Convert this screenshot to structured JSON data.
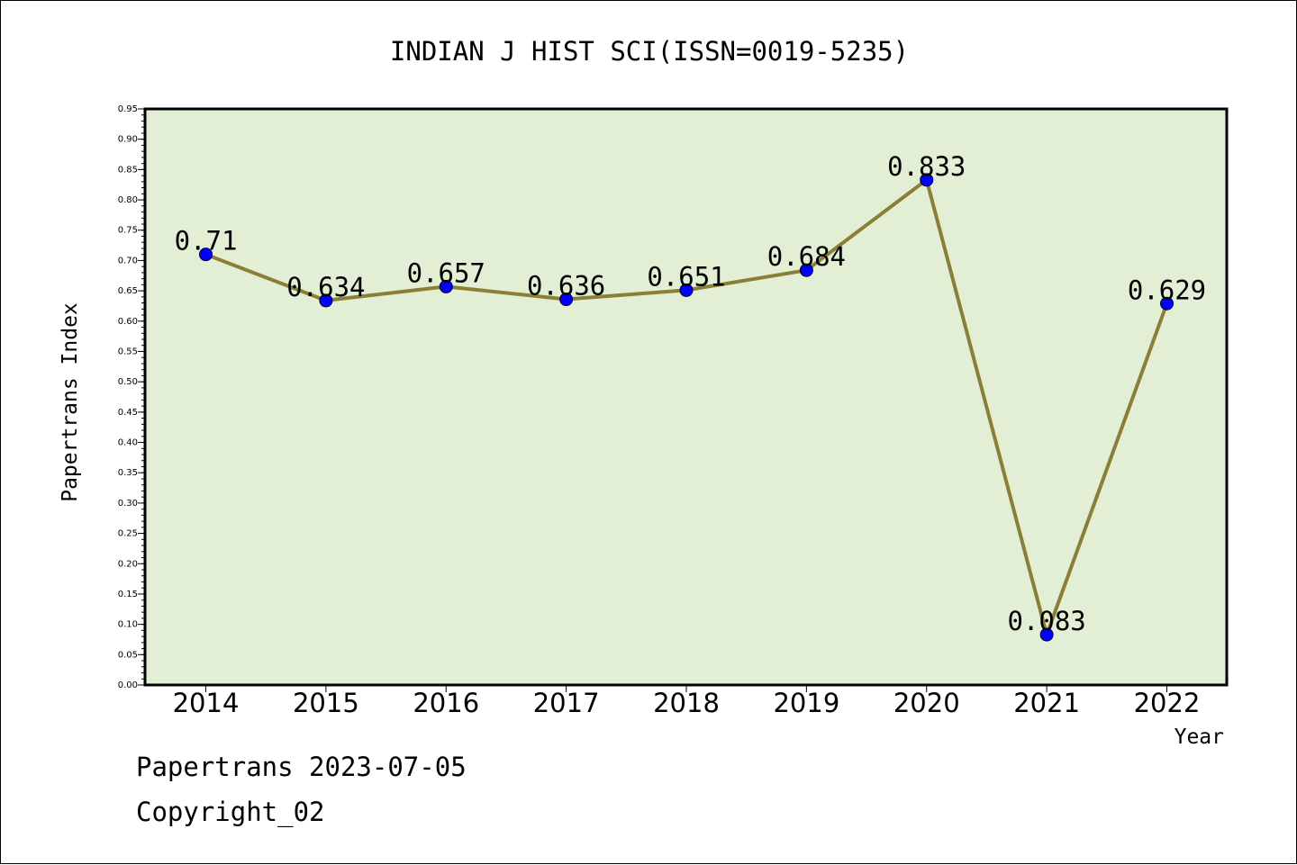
{
  "chart_data": {
    "type": "line",
    "title": "INDIAN J HIST SCI(ISSN=0019-5235)",
    "xlabel": "Year",
    "ylabel": "Papertrans Index",
    "categories": [
      "2014",
      "2015",
      "2016",
      "2017",
      "2018",
      "2019",
      "2020",
      "2021",
      "2022"
    ],
    "values": [
      0.71,
      0.634,
      0.657,
      0.636,
      0.651,
      0.684,
      0.833,
      0.083,
      0.629
    ],
    "data_labels": [
      "0.71",
      "0.634",
      "0.657",
      "0.636",
      "0.651",
      "0.684",
      "0.833",
      "0.083",
      "0.629"
    ],
    "ylim": [
      0,
      0.95
    ],
    "yticks": [
      "0.00",
      "0.05",
      "0.10",
      "0.15",
      "0.20",
      "0.25",
      "0.30",
      "0.35",
      "0.40",
      "0.45",
      "0.50",
      "0.55",
      "0.60",
      "0.65",
      "0.70",
      "0.75",
      "0.80",
      "0.85",
      "0.90",
      "0.95"
    ],
    "grid": false,
    "legend": "none",
    "colors": {
      "plot_background": "#e2efd4",
      "line": "#8a7f35",
      "marker": "#0000ff"
    }
  },
  "footer": {
    "source": "Papertrans 2023-07-05",
    "copyright": "Copyright_02"
  }
}
